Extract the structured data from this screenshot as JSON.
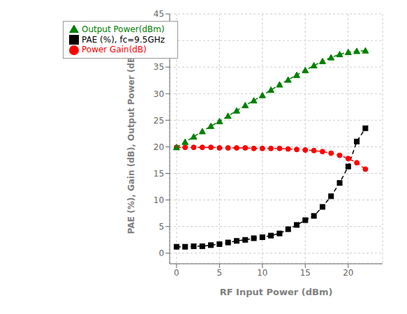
{
  "chart_data": {
    "type": "line",
    "x": [
      0,
      1,
      2,
      3,
      4,
      5,
      6,
      7,
      8,
      9,
      10,
      11,
      12,
      13,
      14,
      15,
      16,
      17,
      18,
      19,
      20,
      21,
      22
    ],
    "series": [
      {
        "name": "PAE (%), fc=9.5GHz",
        "color": "black",
        "marker": "square",
        "line_style": "dashed",
        "values": [
          1.2,
          1.2,
          1.3,
          1.3,
          1.5,
          1.7,
          2.0,
          2.3,
          2.5,
          2.8,
          3.0,
          3.3,
          3.7,
          4.5,
          5.3,
          6.2,
          7.0,
          8.7,
          10.7,
          13.2,
          16.3,
          21.0,
          23.5
        ]
      },
      {
        "name": "Power Gain(dB)",
        "color": "red",
        "marker": "circle",
        "line_style": "dashed",
        "values": [
          19.9,
          19.9,
          19.9,
          19.9,
          19.9,
          19.8,
          19.8,
          19.8,
          19.8,
          19.7,
          19.7,
          19.7,
          19.7,
          19.6,
          19.5,
          19.4,
          19.3,
          19.1,
          18.8,
          18.4,
          17.8,
          17.0,
          15.8
        ]
      },
      {
        "name": "Output Power(dBm)",
        "color": "green",
        "marker": "triangle",
        "line_style": "dashed",
        "values": [
          19.9,
          20.9,
          21.9,
          22.9,
          23.9,
          24.8,
          25.8,
          26.8,
          27.8,
          28.7,
          29.7,
          30.7,
          31.7,
          32.6,
          33.5,
          34.4,
          35.3,
          36.1,
          36.8,
          37.4,
          37.8,
          38.0,
          38.1
        ]
      }
    ],
    "x_label": "RF Input Power (dBm)",
    "y_label": "PAE (%), Gain (dB), Output Power (dBm)",
    "xlim": [
      -0.8,
      24
    ],
    "ylim": [
      -2,
      45
    ],
    "xticks": [
      0,
      5,
      10,
      15,
      20
    ],
    "yticks": [
      0,
      5,
      10,
      15,
      20,
      25,
      30,
      35,
      40,
      45
    ],
    "grid": true,
    "legend": "upper left"
  }
}
